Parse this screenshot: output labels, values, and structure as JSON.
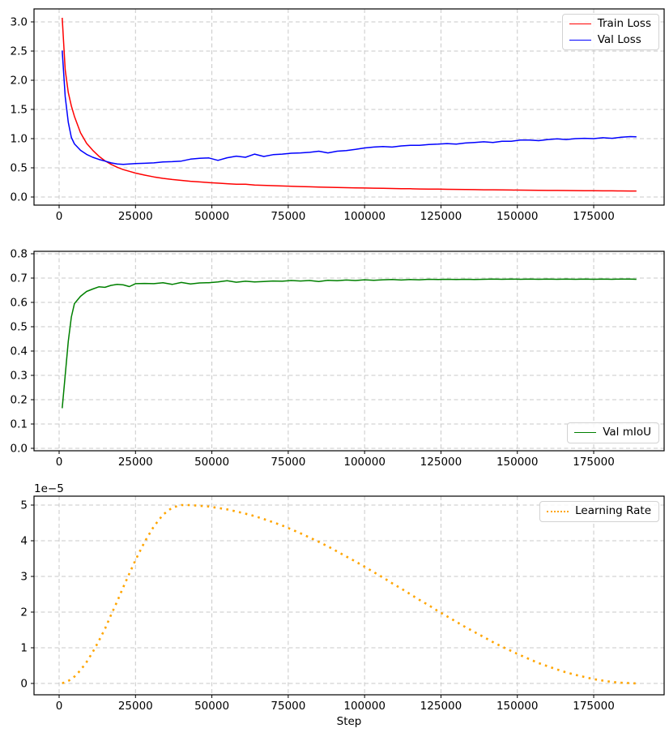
{
  "chart_data": {
    "type": "line",
    "xlabel": "Step",
    "grid": true,
    "grid_color": "#c9c9c9",
    "background_color": "#ffffff",
    "xticks": {
      "values": [
        0,
        25000,
        50000,
        75000,
        100000,
        125000,
        150000,
        175000
      ],
      "labels": [
        "0",
        "25000",
        "50000",
        "75000",
        "100000",
        "125000",
        "150000",
        "175000"
      ]
    },
    "steps_x": [
      1000,
      2000,
      3000,
      4000,
      5000,
      7000,
      9000,
      11000,
      13000,
      15000,
      17000,
      19000,
      21000,
      23000,
      25000,
      28000,
      31000,
      34000,
      37000,
      40000,
      43000,
      46000,
      49000,
      52000,
      55000,
      58000,
      61000,
      64000,
      67000,
      70000,
      73000,
      76000,
      79000,
      82000,
      85000,
      88000,
      91000,
      94000,
      97000,
      100000,
      103000,
      106000,
      109000,
      112000,
      115000,
      118000,
      121000,
      124000,
      127000,
      130000,
      133000,
      136000,
      139000,
      142000,
      145000,
      148000,
      151000,
      154000,
      157000,
      160000,
      163000,
      166000,
      169000,
      172000,
      175000,
      178000,
      181000,
      184000,
      187000,
      189000
    ],
    "charts": [
      {
        "id": "loss",
        "type": "line",
        "title": "",
        "ylabel": "",
        "xlim": [
          -8220,
          198060
        ],
        "ylim": [
          -0.139,
          3.222
        ],
        "yticks": [
          0.0,
          0.5,
          1.0,
          1.5,
          2.0,
          2.5,
          3.0
        ],
        "ytick_labels": [
          "0.0",
          "0.5",
          "1.0",
          "1.5",
          "2.0",
          "2.5",
          "3.0"
        ],
        "grid": true,
        "legend_position": "upper right",
        "series": [
          {
            "name": "Train Loss",
            "color": "#ff0000",
            "style": "solid",
            "values": [
              3.07,
              2.18,
              1.79,
              1.56,
              1.38,
              1.1,
              0.92,
              0.8,
              0.7,
              0.62,
              0.56,
              0.51,
              0.47,
              0.44,
              0.41,
              0.375,
              0.345,
              0.32,
              0.3,
              0.285,
              0.27,
              0.258,
              0.247,
              0.237,
              0.228,
              0.22,
              0.218,
              0.206,
              0.2,
              0.194,
              0.189,
              0.184,
              0.179,
              0.175,
              0.171,
              0.167,
              0.163,
              0.16,
              0.157,
              0.154,
              0.151,
              0.148,
              0.146,
              0.143,
              0.141,
              0.138,
              0.136,
              0.134,
              0.132,
              0.13,
              0.128,
              0.126,
              0.124,
              0.123,
              0.121,
              0.119,
              0.118,
              0.116,
              0.115,
              0.113,
              0.112,
              0.111,
              0.109,
              0.108,
              0.107,
              0.106,
              0.105,
              0.104,
              0.103,
              0.102
            ]
          },
          {
            "name": "Val Loss",
            "color": "#0000ff",
            "style": "solid",
            "values": [
              2.51,
              1.72,
              1.28,
              1.02,
              0.91,
              0.8,
              0.73,
              0.68,
              0.645,
              0.615,
              0.585,
              0.565,
              0.56,
              0.565,
              0.572,
              0.578,
              0.585,
              0.6,
              0.605,
              0.615,
              0.648,
              0.663,
              0.67,
              0.628,
              0.672,
              0.7,
              0.68,
              0.735,
              0.695,
              0.725,
              0.735,
              0.75,
              0.755,
              0.765,
              0.785,
              0.755,
              0.785,
              0.795,
              0.815,
              0.84,
              0.855,
              0.865,
              0.855,
              0.875,
              0.885,
              0.885,
              0.9,
              0.905,
              0.915,
              0.905,
              0.925,
              0.935,
              0.945,
              0.935,
              0.955,
              0.955,
              0.975,
              0.975,
              0.965,
              0.985,
              0.995,
              0.985,
              1.0,
              1.005,
              1.0,
              1.015,
              1.005,
              1.025,
              1.035,
              1.03
            ]
          }
        ]
      },
      {
        "id": "miou",
        "type": "line",
        "title": "",
        "ylabel": "",
        "xlim": [
          -8220,
          198060
        ],
        "ylim": [
          -0.01,
          0.81
        ],
        "yticks": [
          0.0,
          0.1,
          0.2,
          0.3,
          0.4,
          0.5,
          0.6,
          0.7,
          0.8
        ],
        "ytick_labels": [
          "0.0",
          "0.1",
          "0.2",
          "0.3",
          "0.4",
          "0.5",
          "0.6",
          "0.7",
          "0.8"
        ],
        "grid": true,
        "legend_position": "lower right",
        "series": [
          {
            "name": "Val mIoU",
            "color": "#008000",
            "style": "solid",
            "values": [
              0.165,
              0.3,
              0.44,
              0.54,
              0.595,
              0.625,
              0.645,
              0.655,
              0.664,
              0.662,
              0.67,
              0.674,
              0.672,
              0.665,
              0.677,
              0.678,
              0.677,
              0.681,
              0.674,
              0.682,
              0.676,
              0.68,
              0.681,
              0.684,
              0.689,
              0.683,
              0.687,
              0.684,
              0.686,
              0.688,
              0.687,
              0.69,
              0.688,
              0.69,
              0.686,
              0.691,
              0.689,
              0.692,
              0.69,
              0.693,
              0.691,
              0.693,
              0.694,
              0.692,
              0.694,
              0.693,
              0.695,
              0.694,
              0.695,
              0.694,
              0.695,
              0.694,
              0.695,
              0.696,
              0.695,
              0.696,
              0.695,
              0.696,
              0.695,
              0.696,
              0.695,
              0.696,
              0.695,
              0.696,
              0.695,
              0.696,
              0.695,
              0.696,
              0.696,
              0.695
            ]
          }
        ]
      },
      {
        "id": "learning-rate",
        "type": "line",
        "title": "",
        "xlabel": "Step",
        "ylabel": "",
        "y_offset_label": "1e−5",
        "y_scale": 1e-05,
        "xlim": [
          -8220,
          198060
        ],
        "ylim": [
          -0.318,
          5.25
        ],
        "yticks": [
          0,
          1,
          2,
          3,
          4,
          5
        ],
        "ytick_labels": [
          "0",
          "1",
          "2",
          "3",
          "4",
          "5"
        ],
        "grid": true,
        "legend_position": "upper right",
        "series": [
          {
            "name": "Learning Rate",
            "color": "#ffa500",
            "style": "dotted",
            "values": [
              0.01,
              0.03,
              0.07,
              0.12,
              0.19,
              0.37,
              0.6,
              0.88,
              1.19,
              1.53,
              1.92,
              2.3,
              2.7,
              3.08,
              3.46,
              3.97,
              4.4,
              4.73,
              4.93,
              5.0,
              5.0,
              4.98,
              4.96,
              4.92,
              4.88,
              4.82,
              4.76,
              4.69,
              4.61,
              4.52,
              4.43,
              4.32,
              4.21,
              4.09,
              3.97,
              3.84,
              3.7,
              3.56,
              3.42,
              3.27,
              3.12,
              2.97,
              2.81,
              2.66,
              2.5,
              2.34,
              2.19,
              2.03,
              1.88,
              1.73,
              1.58,
              1.44,
              1.3,
              1.16,
              1.03,
              0.91,
              0.79,
              0.68,
              0.57,
              0.48,
              0.39,
              0.31,
              0.24,
              0.18,
              0.12,
              0.08,
              0.04,
              0.02,
              0.01,
              0.0
            ]
          }
        ]
      }
    ]
  }
}
